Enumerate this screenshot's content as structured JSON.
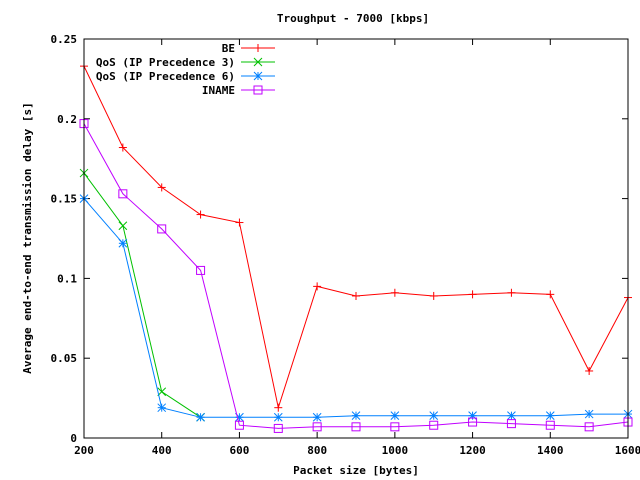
{
  "chart_data": {
    "type": "line",
    "title": "Troughput - 7000 [kbps]",
    "xlabel": "Packet size [bytes]",
    "ylabel": "Average end-to-end transmission delay [s]",
    "xlim": [
      200,
      1600
    ],
    "ylim": [
      0,
      0.25
    ],
    "xticks": [
      200,
      400,
      600,
      800,
      1000,
      1200,
      1400,
      1600
    ],
    "yticks": [
      0,
      0.05,
      0.1,
      0.15,
      0.2,
      0.25
    ],
    "grid": false,
    "legend_position": "top-right",
    "series": [
      {
        "name": "BE",
        "color": "#ff0000",
        "marker": "plus",
        "x": [
          200,
          300,
          400,
          500,
          600,
          700,
          800,
          900,
          1000,
          1100,
          1200,
          1300,
          1400,
          1500,
          1600
        ],
        "y": [
          0.233,
          0.182,
          0.157,
          0.14,
          0.135,
          0.019,
          0.095,
          0.089,
          0.091,
          0.089,
          0.09,
          0.091,
          0.09,
          0.042,
          0.088
        ]
      },
      {
        "name": "QoS (IP Precedence 3)",
        "color": "#00c000",
        "marker": "x",
        "x": [
          200,
          300,
          400,
          500
        ],
        "y": [
          0.166,
          0.133,
          0.029,
          0.013
        ]
      },
      {
        "name": "QoS (IP Precedence 6)",
        "color": "#0080ff",
        "marker": "star",
        "x": [
          200,
          300,
          400,
          500,
          600,
          700,
          800,
          900,
          1000,
          1100,
          1200,
          1300,
          1400,
          1500,
          1600
        ],
        "y": [
          0.15,
          0.122,
          0.019,
          0.013,
          0.013,
          0.013,
          0.013,
          0.014,
          0.014,
          0.014,
          0.014,
          0.014,
          0.014,
          0.015,
          0.015
        ]
      },
      {
        "name": "INAME",
        "color": "#c000ff",
        "marker": "square",
        "x": [
          200,
          300,
          400,
          500,
          600,
          700,
          800,
          900,
          1000,
          1100,
          1200,
          1300,
          1400,
          1500,
          1600
        ],
        "y": [
          0.197,
          0.153,
          0.131,
          0.105,
          0.008,
          0.006,
          0.007,
          0.007,
          0.007,
          0.008,
          0.01,
          0.009,
          0.008,
          0.007,
          0.01
        ]
      }
    ]
  }
}
